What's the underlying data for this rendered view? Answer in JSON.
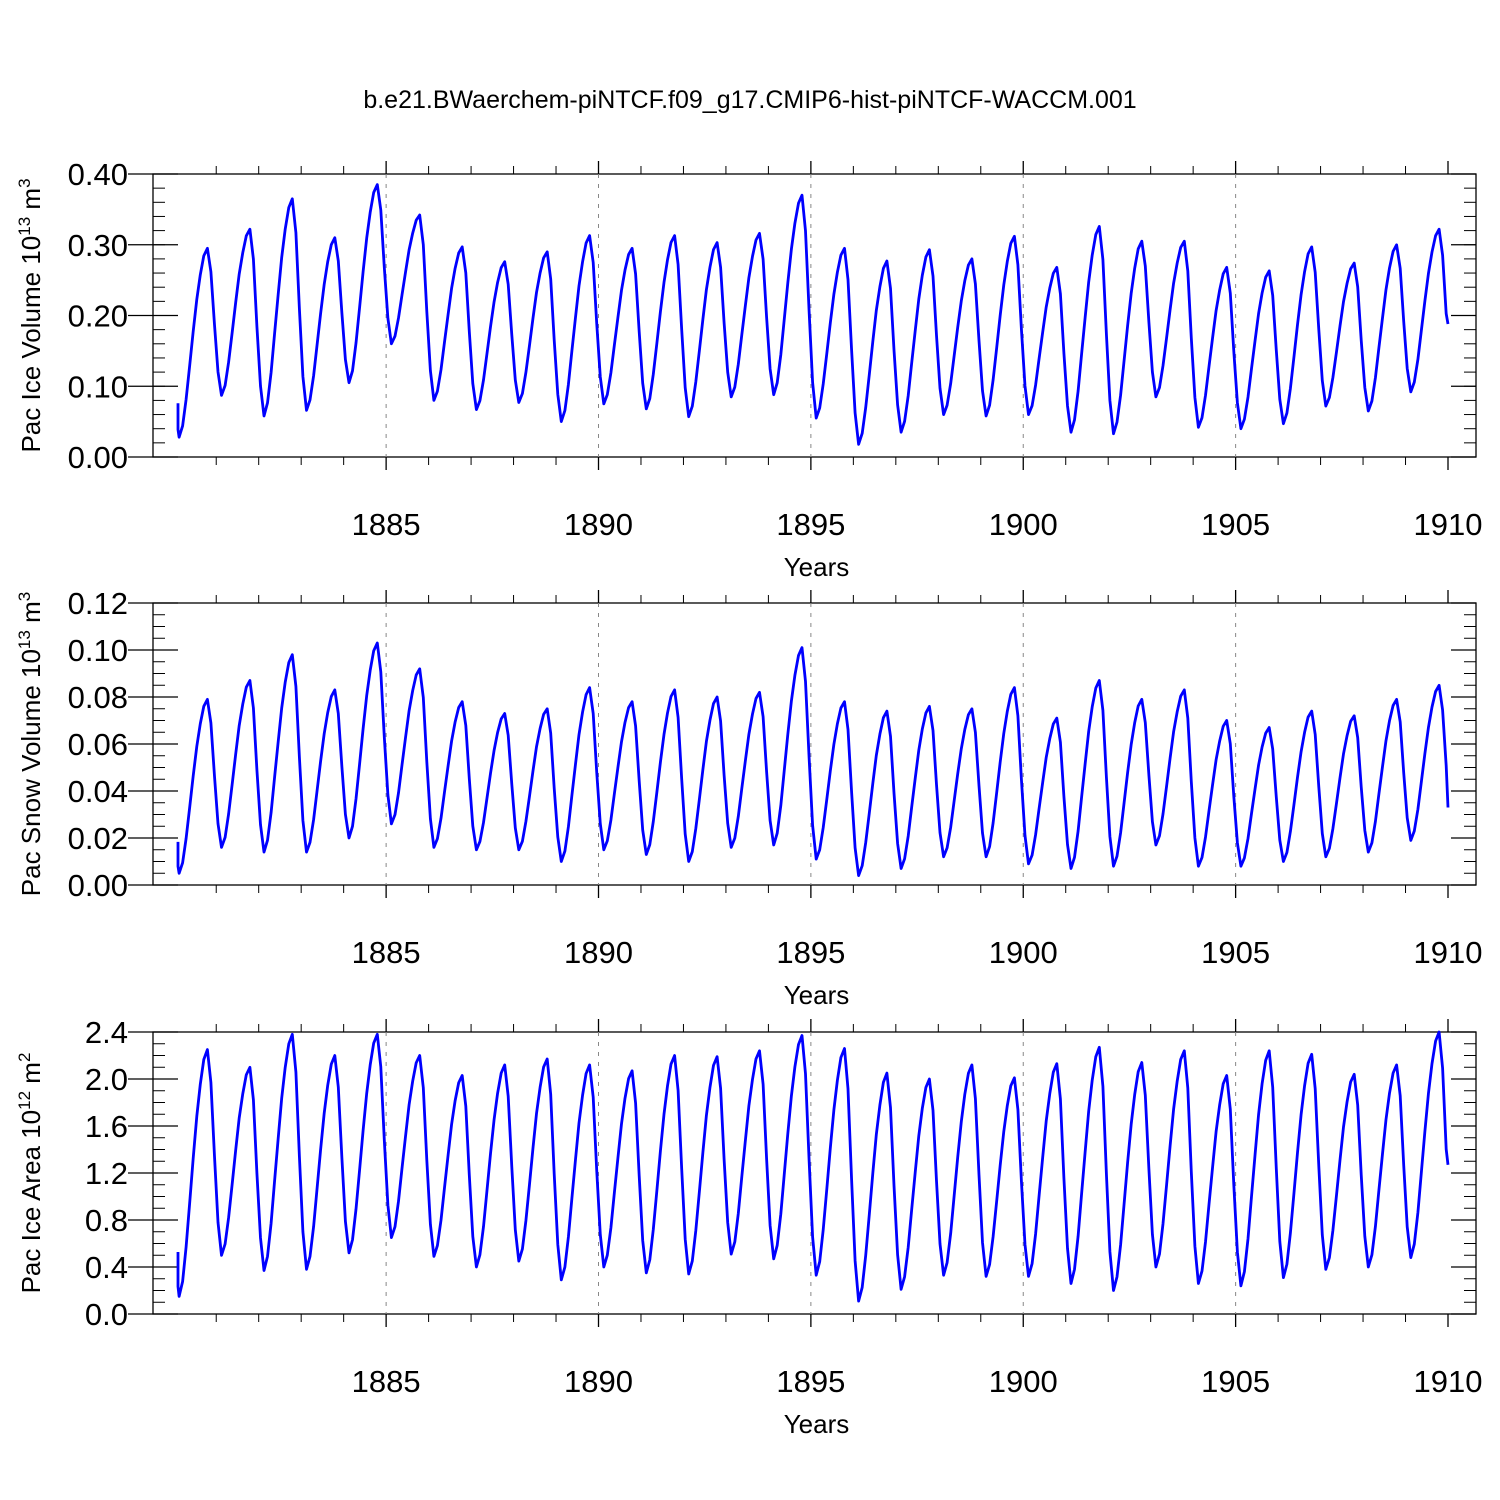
{
  "title": "b.e21.BWaerchem-piNTCF.f09_g17.CMIP6-hist-piNTCF-WACCM.001",
  "colors": {
    "series": "#0000ff",
    "axis": "#000000",
    "grid": "#888888"
  },
  "chart_data": [
    {
      "type": "line",
      "name": "ice-volume",
      "xlabel": "Years",
      "ylabel_parts": [
        "Pac Ice Volume 10",
        "13",
        " m",
        "3"
      ],
      "xlim": [
        1880.1,
        1910.0
      ],
      "ylim": [
        0.0,
        0.4
      ],
      "xticks": [
        "1885",
        "1890",
        "1895",
        "1900",
        "1905",
        "1910"
      ],
      "yticks": [
        "0.00",
        "0.10",
        "0.20",
        "0.30",
        "0.40"
      ],
      "minor_y_step": 0.02,
      "grid": "dashed vertical at major x ticks",
      "start_year": 1880.125,
      "step_years": 0.08333,
      "min": [
        0.028,
        0.087,
        0.058,
        0.066,
        0.105,
        0.16,
        0.08,
        0.067,
        0.077,
        0.05,
        0.075,
        0.068,
        0.057,
        0.085,
        0.088,
        0.055,
        0.018,
        0.035,
        0.06,
        0.058,
        0.06,
        0.035,
        0.033,
        0.085,
        0.042,
        0.04,
        0.047,
        0.072,
        0.065,
        0.092
      ],
      "max": [
        0.295,
        0.322,
        0.365,
        0.31,
        0.385,
        0.342,
        0.297,
        0.276,
        0.29,
        0.313,
        0.295,
        0.313,
        0.303,
        0.316,
        0.37,
        0.295,
        0.277,
        0.293,
        0.28,
        0.312,
        0.268,
        0.326,
        0.305,
        0.305,
        0.268,
        0.263,
        0.297,
        0.274,
        0.3,
        0.322
      ],
      "end_value": 0.188
    },
    {
      "type": "line",
      "name": "snow-volume",
      "xlabel": "Years",
      "ylabel_parts": [
        "Pac Snow Volume 10",
        "13",
        " m",
        "3"
      ],
      "xlim": [
        1880.1,
        1910.0
      ],
      "ylim": [
        0.0,
        0.12
      ],
      "xticks": [
        "1885",
        "1890",
        "1895",
        "1900",
        "1905",
        "1910"
      ],
      "yticks": [
        "0.00",
        "0.02",
        "0.04",
        "0.06",
        "0.08",
        "0.10",
        "0.12"
      ],
      "minor_y_step": 0.005,
      "grid": "dashed vertical at major x ticks",
      "start_year": 1880.125,
      "step_years": 0.08333,
      "min": [
        0.005,
        0.016,
        0.014,
        0.014,
        0.02,
        0.026,
        0.016,
        0.015,
        0.015,
        0.01,
        0.015,
        0.013,
        0.01,
        0.016,
        0.017,
        0.011,
        0.004,
        0.007,
        0.012,
        0.012,
        0.009,
        0.007,
        0.008,
        0.017,
        0.008,
        0.008,
        0.01,
        0.012,
        0.014,
        0.019
      ],
      "max": [
        0.079,
        0.087,
        0.098,
        0.083,
        0.103,
        0.092,
        0.078,
        0.073,
        0.075,
        0.084,
        0.078,
        0.083,
        0.08,
        0.082,
        0.101,
        0.078,
        0.074,
        0.076,
        0.075,
        0.084,
        0.071,
        0.087,
        0.079,
        0.083,
        0.07,
        0.067,
        0.074,
        0.072,
        0.079,
        0.085
      ],
      "end_value": 0.033
    },
    {
      "type": "line",
      "name": "ice-area",
      "xlabel": "Years",
      "ylabel_parts": [
        "Pac Ice Area 10",
        "12",
        " m",
        "2"
      ],
      "xlim": [
        1880.1,
        1910.0
      ],
      "ylim": [
        0.0,
        2.4
      ],
      "xticks": [
        "1885",
        "1890",
        "1895",
        "1900",
        "1905",
        "1910"
      ],
      "yticks": [
        "0.0",
        "0.4",
        "0.8",
        "1.2",
        "1.6",
        "2.0",
        "2.4"
      ],
      "minor_y_step": 0.1,
      "grid": "dashed vertical at major x ticks",
      "start_year": 1880.125,
      "step_years": 0.08333,
      "min": [
        0.15,
        0.5,
        0.37,
        0.38,
        0.52,
        0.65,
        0.49,
        0.4,
        0.45,
        0.29,
        0.4,
        0.35,
        0.34,
        0.51,
        0.47,
        0.33,
        0.11,
        0.21,
        0.33,
        0.32,
        0.32,
        0.26,
        0.2,
        0.4,
        0.26,
        0.24,
        0.31,
        0.38,
        0.4,
        0.48
      ],
      "max": [
        2.25,
        2.1,
        2.38,
        2.2,
        2.38,
        2.2,
        2.03,
        2.12,
        2.17,
        2.12,
        2.07,
        2.2,
        2.19,
        2.24,
        2.37,
        2.26,
        2.05,
        2.0,
        2.12,
        2.01,
        2.13,
        2.27,
        2.14,
        2.24,
        2.03,
        2.24,
        2.21,
        2.04,
        2.12,
        2.4
      ],
      "end_value": 1.27
    }
  ]
}
